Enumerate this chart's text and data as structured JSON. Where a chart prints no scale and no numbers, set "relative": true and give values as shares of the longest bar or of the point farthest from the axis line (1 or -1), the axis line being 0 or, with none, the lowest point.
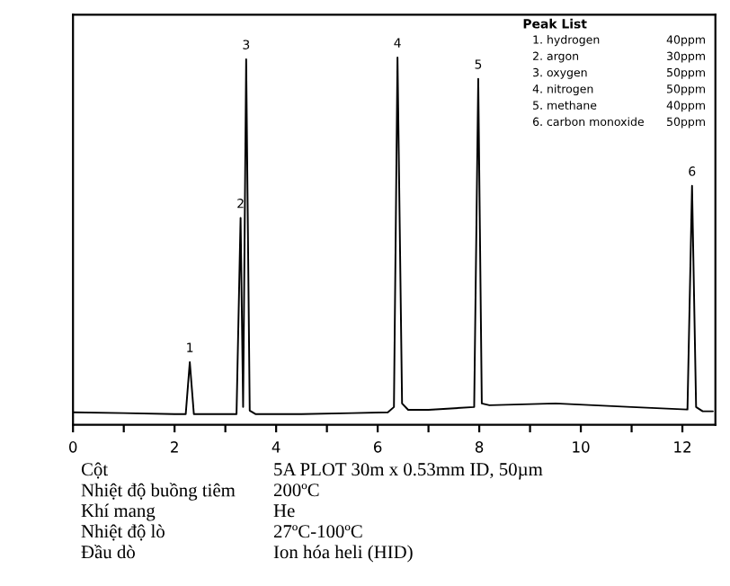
{
  "chart_data": {
    "type": "line",
    "relative": true,
    "color": "#000000",
    "x": [
      0,
      1,
      2,
      2.22,
      2.3,
      2.38,
      3.22,
      3.3,
      3.35,
      3.41,
      3.48,
      3.6,
      4.5,
      5.5,
      6.2,
      6.32,
      6.39,
      6.48,
      6.6,
      7.0,
      7.9,
      7.98,
      8.05,
      8.2,
      9.5,
      11,
      12.1,
      12.19,
      12.27,
      12.4,
      12.6
    ],
    "values": [
      0.005,
      0.003,
      0.0,
      0.0,
      0.146,
      0.0,
      0.0,
      0.55,
      0.02,
      0.995,
      0.01,
      0.0,
      0.0,
      0.003,
      0.005,
      0.02,
      1.0,
      0.03,
      0.012,
      0.012,
      0.02,
      0.94,
      0.03,
      0.025,
      0.03,
      0.02,
      0.013,
      0.64,
      0.02,
      0.008,
      0.008
    ],
    "xlim": [
      0,
      12.65
    ],
    "xticks": [
      0,
      {
        "value": 1,
        "label": null
      },
      2,
      {
        "value": 3,
        "label": null
      },
      4,
      {
        "value": 5,
        "label": null
      },
      6,
      {
        "value": 7,
        "label": null
      },
      8,
      {
        "value": 9,
        "label": null
      },
      10,
      {
        "value": 11,
        "label": null
      },
      12
    ],
    "annotations": [
      {
        "text": "1",
        "x": 2.3,
        "y": 0.146
      },
      {
        "text": "2",
        "x": 3.3,
        "y": 0.55
      },
      {
        "text": "3",
        "x": 3.41,
        "y": 0.995
      },
      {
        "text": "4",
        "x": 6.39,
        "y": 1.0
      },
      {
        "text": "5",
        "x": 7.98,
        "y": 0.94
      },
      {
        "text": "6",
        "x": 12.19,
        "y": 0.64
      },
      "Peak List",
      "1. hydrogen",
      "40ppm",
      "2. argon",
      "30ppm",
      "3. oxygen",
      "50ppm",
      "4. nitrogen",
      "50ppm",
      "5. methane",
      "40ppm",
      "6. carbon monoxide",
      "50ppm",
      "Cột",
      "5A PLOT 30m x 0.53mm ID, 50µm",
      "Nhiệt độ buồng tiêm",
      "200ºC",
      "Khí mang",
      "He",
      "Nhiệt độ lò",
      "27ºC-100ºC",
      "Đầu dò",
      "Ion hóa heli (HID)"
    ]
  }
}
